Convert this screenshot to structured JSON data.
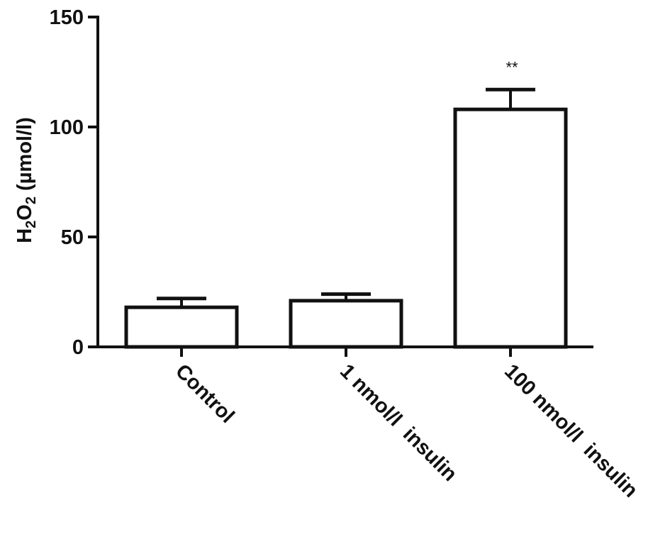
{
  "chart_data": {
    "type": "bar",
    "title": "",
    "xlabel": "",
    "ylabel": {
      "prefix": "H",
      "sub1": "2",
      "mid": "O",
      "sub2": "2",
      "suffix": " (µmol/l)"
    },
    "ylim": [
      0,
      150
    ],
    "yticks": [
      "0",
      "50",
      "100",
      "150"
    ],
    "categories": [
      "Control",
      "1 nmol/l  insulin",
      "100 nmol/l  insulin"
    ],
    "values": [
      18,
      21,
      108
    ],
    "errors": [
      4,
      3,
      9
    ],
    "annotations": [
      "",
      "",
      "**"
    ],
    "grid": false,
    "legend": "none",
    "colors": {
      "bar_fill": "#ffffff",
      "bar_stroke": "#111111",
      "axis": "#111111"
    }
  }
}
